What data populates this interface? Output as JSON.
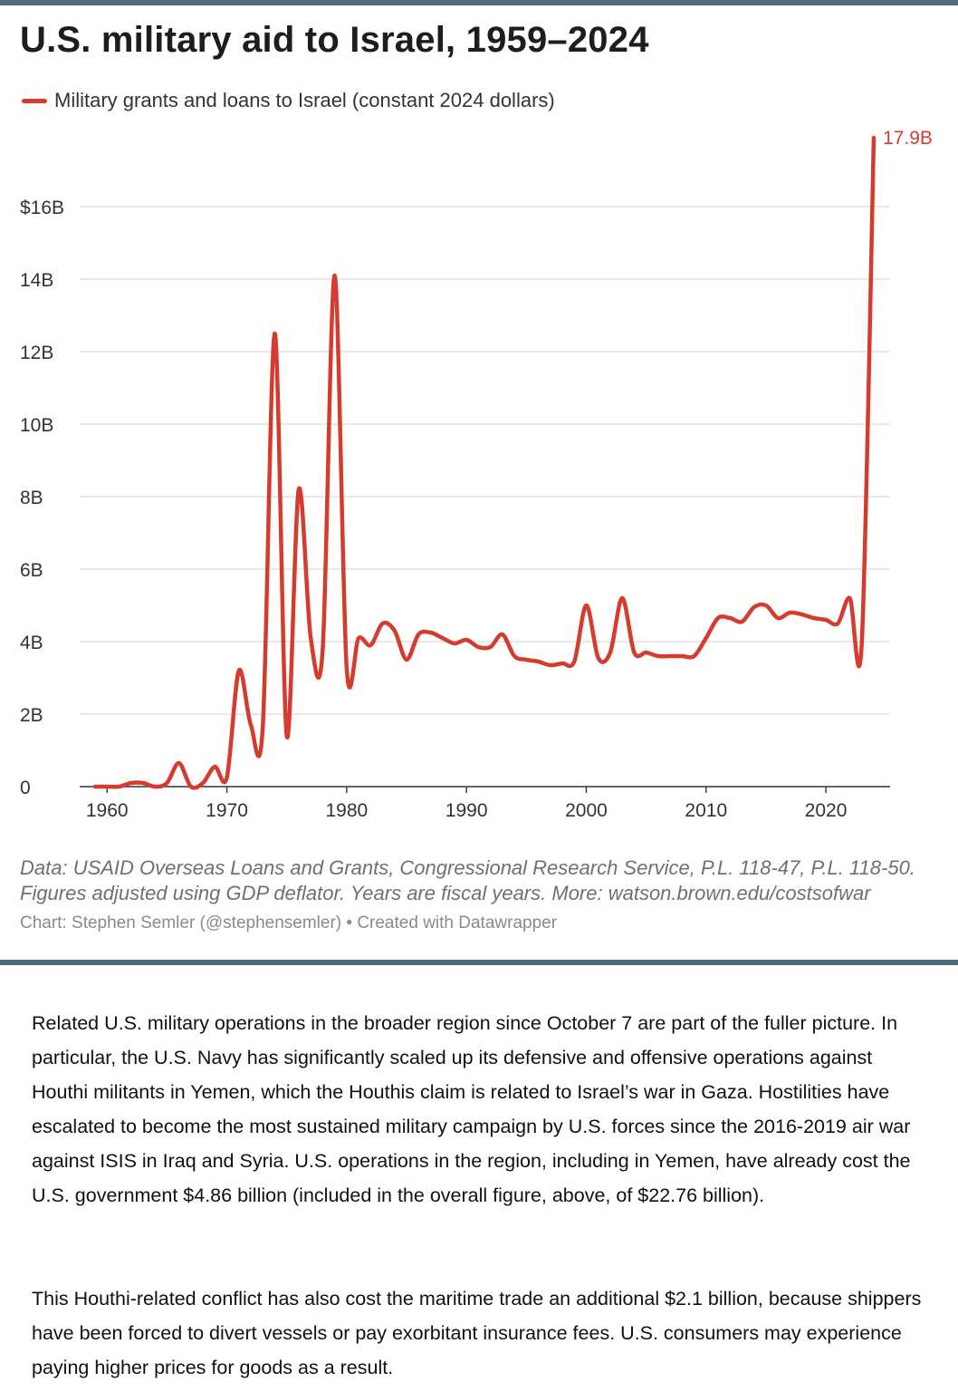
{
  "chart_title": "U.S. military aid to Israel, 1959–2024",
  "legend": {
    "label": "Military grants and loans to Israel (constant 2024 dollars)",
    "color": "#d63b2f"
  },
  "chart_data": {
    "type": "line",
    "title": "U.S. military aid to Israel, 1959–2024",
    "xlabel": "",
    "ylabel": "",
    "ylim": [
      0,
      18
    ],
    "xlim": [
      1959,
      2024
    ],
    "grid": true,
    "legend_position": "top-left",
    "y_ticks": [
      {
        "value": 0,
        "label": "0"
      },
      {
        "value": 2,
        "label": "2B"
      },
      {
        "value": 4,
        "label": "4B"
      },
      {
        "value": 6,
        "label": "6B"
      },
      {
        "value": 8,
        "label": "8B"
      },
      {
        "value": 10,
        "label": "10B"
      },
      {
        "value": 12,
        "label": "12B"
      },
      {
        "value": 14,
        "label": "14B"
      },
      {
        "value": 16,
        "label": "$16B"
      }
    ],
    "x_ticks": [
      {
        "value": 1960,
        "label": "1960"
      },
      {
        "value": 1970,
        "label": "1970"
      },
      {
        "value": 1980,
        "label": "1980"
      },
      {
        "value": 1990,
        "label": "1990"
      },
      {
        "value": 2000,
        "label": "2000"
      },
      {
        "value": 2010,
        "label": "2010"
      },
      {
        "value": 2020,
        "label": "2020"
      }
    ],
    "series": [
      {
        "name": "Military grants and loans to Israel (constant 2024 dollars)",
        "color": "#d63b2f",
        "x": [
          1959,
          1960,
          1961,
          1962,
          1963,
          1964,
          1965,
          1966,
          1967,
          1968,
          1969,
          1970,
          1971,
          1972,
          1973,
          1974,
          1975,
          1976,
          1977,
          1978,
          1979,
          1980,
          1981,
          1982,
          1983,
          1984,
          1985,
          1986,
          1987,
          1988,
          1989,
          1990,
          1991,
          1992,
          1993,
          1994,
          1995,
          1996,
          1997,
          1998,
          1999,
          2000,
          2001,
          2002,
          2003,
          2004,
          2005,
          2006,
          2007,
          2008,
          2009,
          2010,
          2011,
          2012,
          2013,
          2014,
          2015,
          2016,
          2017,
          2018,
          2019,
          2020,
          2021,
          2022,
          2023,
          2024
        ],
        "values": [
          0,
          0,
          0,
          0.1,
          0.1,
          0,
          0.1,
          0.65,
          0,
          0.1,
          0.55,
          0.25,
          3.2,
          1.7,
          1.65,
          12.5,
          1.4,
          8.2,
          4.1,
          3.8,
          14.1,
          3.3,
          4.1,
          3.9,
          4.5,
          4.3,
          3.5,
          4.2,
          4.25,
          4.1,
          3.95,
          4.05,
          3.85,
          3.85,
          4.2,
          3.6,
          3.5,
          3.45,
          3.35,
          3.4,
          3.45,
          5.0,
          3.55,
          3.7,
          5.2,
          3.7,
          3.7,
          3.6,
          3.6,
          3.6,
          3.6,
          4.1,
          4.65,
          4.65,
          4.55,
          4.95,
          5.0,
          4.65,
          4.8,
          4.75,
          4.65,
          4.6,
          4.5,
          5.2,
          4.0,
          17.9
        ]
      }
    ],
    "annotations": [
      {
        "x": 2024,
        "y": 17.9,
        "label": "17.9B"
      }
    ]
  },
  "notes": {
    "source_line1": "Data: USAID Overseas Loans and Grants, Congressional Research Service, P.L. 118-47, P.L. 118-50.",
    "source_line2": "Figures adjusted using GDP deflator. Years are fiscal years. More: watson.brown.edu/costsofwar",
    "credit": "Chart: Stephen Semler (@stephensemler) • Created with Datawrapper"
  },
  "article": {
    "paragraph1": "Related U.S. military operations in the broader region since October 7 are part of the fuller picture. In particular, the U.S. Navy has significantly scaled up its defensive and offensive operations against Houthi militants in Yemen, which the Houthis claim is related to Israel’s war in Gaza. Hostilities have escalated to become the most sustained military campaign by U.S. forces since the 2016-2019 air war against ISIS in Iraq and Syria. U.S. operations in the region, including in Yemen, have already cost the U.S. government $4.86 billion (included in the overall figure, above, of $22.76 billion).",
    "paragraph2": "This Houthi-related conflict has also cost the maritime trade an additional $2.1 billion, because shippers have been forced to divert vessels or pay exorbitant insurance fees. U.S. consumers may experience paying higher prices for goods as a result."
  }
}
